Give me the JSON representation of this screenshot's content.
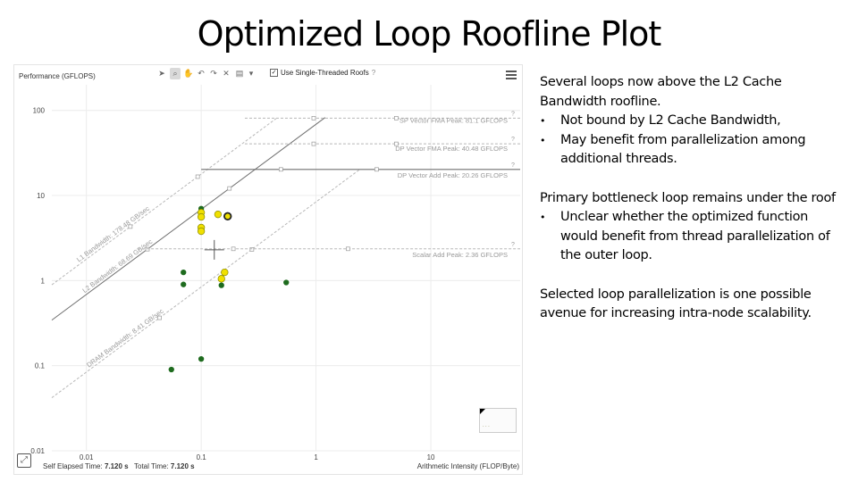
{
  "slide": {
    "title": "Optimized Loop Roofline Plot",
    "blocks": [
      {
        "text": "Several loops now above the L2 Cache Bandwidth roofline.",
        "bullets": [
          "Not bound by L2 Cache Bandwidth,",
          "May benefit from parallelization among additional threads."
        ]
      },
      {
        "text": "Primary bottleneck loop remains under the roof",
        "bullets": [
          "Unclear whether the optimized function would benefit from thread parallelization of the outer loop."
        ]
      },
      {
        "text": "Selected loop parallelization is one possible avenue for increasing intra-node scalability.",
        "bullets": []
      }
    ]
  },
  "toolbar": {
    "ylabel": "Performance (GFLOPS)",
    "roofs_checkbox_label": "Use Single-Threaded Roofs",
    "roofs_checked": true,
    "checkbox_mark": "✓",
    "help_mark": "?"
  },
  "footer": {
    "elapsed_label": "Self Elapsed Time:",
    "elapsed_value": "7.120 s",
    "total_label": "Total Time:",
    "total_value": "7.120 s",
    "xlabel": "Arithmetic Intensity (FLOP/Byte)"
  },
  "chart_data": {
    "type": "scatter",
    "title": "",
    "xlabel": "Arithmetic Intensity (FLOP/Byte)",
    "ylabel": "Performance (GFLOPS)",
    "x_scale": "log",
    "y_scale": "log",
    "xlim": [
      0.005,
      60
    ],
    "ylim": [
      0.01,
      200
    ],
    "x_ticks": [
      {
        "v": 0.01,
        "label": "0.01"
      },
      {
        "v": 0.1,
        "label": "0.1"
      },
      {
        "v": 1,
        "label": "1"
      },
      {
        "v": 10,
        "label": "10"
      }
    ],
    "y_ticks": [
      {
        "v": 100,
        "label": "100"
      },
      {
        "v": 10,
        "label": "10"
      },
      {
        "v": 1,
        "label": "1"
      },
      {
        "v": 0.1,
        "label": "0.1"
      },
      {
        "v": 0.01,
        "label": "0.01"
      }
    ],
    "grid": true,
    "roofs": [
      {
        "kind": "compute",
        "label": "SP Vector FMA Peak: 81.1 GFLOPS",
        "value": 81.1,
        "style": "dashed",
        "ridge_x": 0.24
      },
      {
        "kind": "compute",
        "label": "DP Vector FMA Peak: 40.48 GFLOPS",
        "value": 40.48,
        "style": "dashed",
        "ridge_x": 0.24
      },
      {
        "kind": "compute",
        "label": "DP Vector Add Peak: 20.26 GFLOPS",
        "value": 20.26,
        "style": "solid",
        "ridge_x": 0.1
      },
      {
        "kind": "compute",
        "label": "Scalar Add Peak: 2.36 GFLOPS",
        "value": 2.36,
        "style": "dashed",
        "ridge_x": 0.028
      },
      {
        "kind": "memory",
        "label": "L1 Bandwidth: 178.48 GB/sec",
        "value": 178.48,
        "style": "dashed",
        "end_x": 0.45
      },
      {
        "kind": "memory",
        "label": "L2 Bandwidth: 68.69 GB/sec",
        "value": 68.69,
        "style": "solid",
        "end_x": 1.2
      },
      {
        "kind": "memory",
        "label": "DRAM Bandwidth: 8.41 GB/sec",
        "value": 8.41,
        "style": "dashed",
        "end_x": 2.4
      }
    ],
    "points": [
      {
        "x": 0.1,
        "y": 7.0,
        "color": "green"
      },
      {
        "x": 0.1,
        "y": 6.3,
        "color": "yellow"
      },
      {
        "x": 0.1,
        "y": 5.6,
        "color": "yellow"
      },
      {
        "x": 0.1,
        "y": 4.2,
        "color": "yellow"
      },
      {
        "x": 0.1,
        "y": 3.8,
        "color": "yellow"
      },
      {
        "x": 0.14,
        "y": 6.0,
        "color": "yellow"
      },
      {
        "x": 0.17,
        "y": 5.7,
        "color": "yellow",
        "selected": true
      },
      {
        "x": 0.16,
        "y": 1.25,
        "color": "yellow"
      },
      {
        "x": 0.15,
        "y": 1.05,
        "color": "yellow"
      },
      {
        "x": 0.07,
        "y": 1.25,
        "color": "green"
      },
      {
        "x": 0.07,
        "y": 0.9,
        "color": "green"
      },
      {
        "x": 0.15,
        "y": 0.88,
        "color": "green"
      },
      {
        "x": 0.55,
        "y": 0.95,
        "color": "green"
      },
      {
        "x": 0.1,
        "y": 0.12,
        "color": "green"
      },
      {
        "x": 0.055,
        "y": 0.09,
        "color": "green"
      }
    ],
    "crosshair": {
      "x": 0.13,
      "y": 2.3
    },
    "colors": {
      "green": "#1e6b1e",
      "yellow": "#f0e000",
      "yellow_stroke": "#8a8a00",
      "roof_solid": "#707070",
      "roof_dashed": "#b8b8b8",
      "roof_label": "#9a9a9a",
      "grid": "#ececec"
    }
  }
}
